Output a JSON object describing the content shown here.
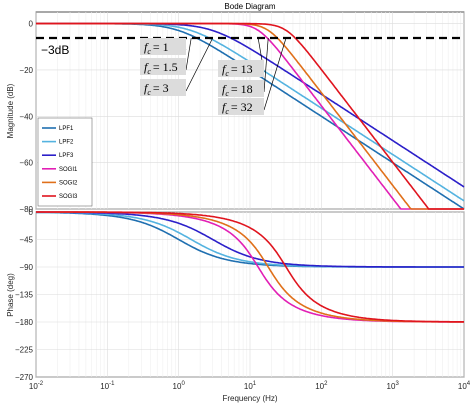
{
  "chart_data": [
    {
      "type": "line",
      "title": "Bode Diagram",
      "ylabel": "Magnitude (dB)",
      "xlabel": "",
      "x_scale": "log",
      "xlim": [
        0.01,
        10000
      ],
      "ylim": [
        -80,
        5
      ],
      "yticks": [
        0,
        -20,
        -40,
        -60,
        -80
      ],
      "grid": true,
      "reference_line": {
        "y": -3,
        "label": "−3dB",
        "style": "dashed"
      },
      "annotations": [
        {
          "text": "f",
          "sub": "c",
          "value": "= 1"
        },
        {
          "text": "f",
          "sub": "c",
          "value": "= 1.5"
        },
        {
          "text": "f",
          "sub": "c",
          "value": "= 3"
        },
        {
          "text": "f",
          "sub": "c",
          "value": "= 13"
        },
        {
          "text": "f",
          "sub": "c",
          "value": "= 18"
        },
        {
          "text": "f",
          "sub": "c",
          "value": "= 32"
        }
      ],
      "legend": {
        "placement": "lower-left",
        "entries": [
          "LPF1",
          "LPF2",
          "LPF3",
          "SOGI1",
          "SOGI2",
          "SOGI3"
        ]
      },
      "series": [
        {
          "name": "LPF1",
          "color": "#1f6fb0",
          "model": "first_order_lowpass",
          "fc": 1
        },
        {
          "name": "LPF2",
          "color": "#54b3e0",
          "model": "first_order_lowpass",
          "fc": 1.5
        },
        {
          "name": "LPF3",
          "color": "#2b1fc9",
          "model": "first_order_lowpass",
          "fc": 3
        },
        {
          "name": "SOGI1",
          "color": "#e21fb5",
          "model": "second_order_lowpass",
          "fc": 13
        },
        {
          "name": "SOGI2",
          "color": "#e0701a",
          "model": "second_order_lowpass",
          "fc": 18
        },
        {
          "name": "SOGI3",
          "color": "#e0141e",
          "model": "second_order_lowpass",
          "fc": 32
        }
      ]
    },
    {
      "type": "line",
      "title": "",
      "ylabel": "Phase (deg)",
      "xlabel": "Frequency  (Hz)",
      "x_scale": "log",
      "xlim": [
        0.01,
        10000
      ],
      "ylim": [
        -270,
        0
      ],
      "yticks": [
        0,
        -45,
        -90,
        -135,
        -180,
        -225,
        -270
      ],
      "xtick_labels": [
        "10-2",
        "10-1",
        "100",
        "101",
        "102",
        "103",
        "104"
      ],
      "grid": true,
      "series_ref": "same as magnitude plot"
    }
  ],
  "text": {
    "title": "Bode Diagram",
    "mag_ylabel": "Magnitude (dB)",
    "phase_ylabel": "Phase (deg)",
    "xlabel": "Frequency  (Hz)",
    "db3": "−3dB",
    "mag_ticks": [
      "0",
      "−20",
      "−40",
      "−60",
      "−80"
    ],
    "phase_ticks": [
      "0",
      "−45",
      "−90",
      "−135",
      "−180",
      "−225",
      "−270"
    ],
    "x_ticks": [
      {
        "base": "10",
        "exp": "-2"
      },
      {
        "base": "10",
        "exp": "-1"
      },
      {
        "base": "10",
        "exp": "0"
      },
      {
        "base": "10",
        "exp": "1"
      },
      {
        "base": "10",
        "exp": "2"
      },
      {
        "base": "10",
        "exp": "3"
      },
      {
        "base": "10",
        "exp": "4"
      }
    ]
  }
}
